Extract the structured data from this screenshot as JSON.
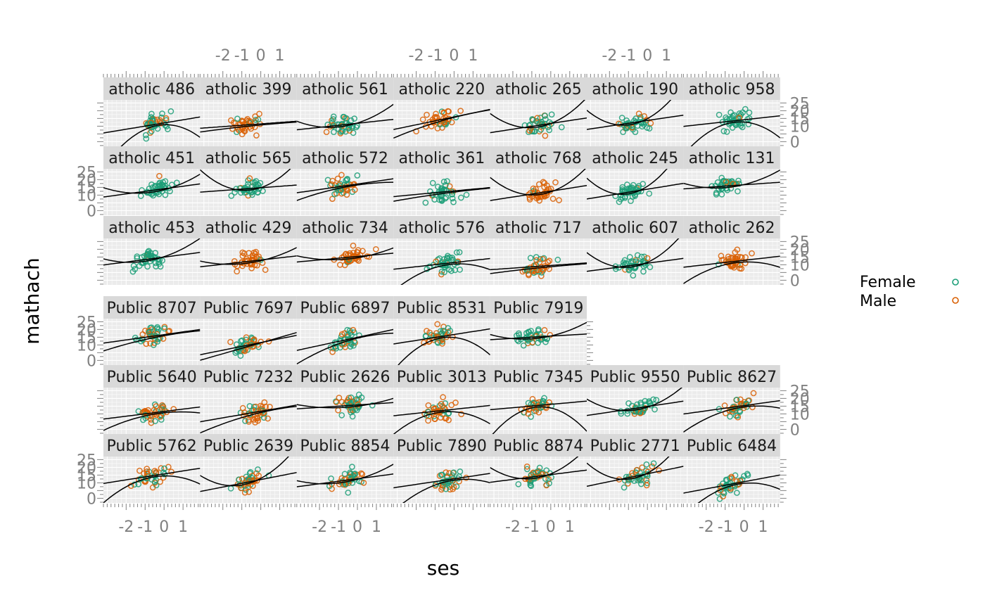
{
  "chart_data": {
    "type": "scatter",
    "title": "",
    "xlabel": "ses",
    "ylabel": "mathach",
    "xlim": [
      -3.2,
      1.9
    ],
    "ylim": [
      -3,
      27
    ],
    "x_ticks": [
      "-2",
      "-1",
      "0",
      "1"
    ],
    "y_ticks": [
      "0",
      "5",
      "10",
      "15",
      "20",
      "25"
    ],
    "y_tick_labels_shown": [
      "0",
      "10",
      "15",
      "20",
      "25"
    ],
    "grid": true,
    "legend": {
      "placement": "right",
      "entries": [
        {
          "name": "Female",
          "color": "#1b9e77"
        },
        {
          "name": "Male",
          "color": "#d95f02"
        }
      ]
    },
    "series": [
      {
        "name": "Female"
      },
      {
        "name": "Male"
      }
    ],
    "panel_rows": [
      [
        "atholic 486",
        "atholic 399",
        "atholic 561",
        "atholic 220",
        "atholic 265",
        "atholic 190",
        "atholic 958"
      ],
      [
        "atholic 451",
        "atholic 565",
        "atholic 572",
        "atholic 361",
        "atholic 768",
        "atholic 245",
        "atholic 131"
      ],
      [
        "atholic 453",
        "atholic 429",
        "atholic 734",
        "atholic 576",
        "atholic 717",
        "atholic 607",
        "atholic 262"
      ],
      [
        "Public 8707",
        "Public 7697",
        "Public 6897",
        "Public 8531",
        "Public 7919"
      ],
      [
        "Public 5640",
        "Public 7232",
        "Public 2626",
        "Public 3013",
        "Public 7345",
        "Public 9550",
        "Public 8627"
      ],
      [
        "Public 5762",
        "Public 2639",
        "Public 8854",
        "Public 7890",
        "Public 8874",
        "Public 2771",
        "Public 6484"
      ]
    ],
    "panel_mix": [
      [
        0.3,
        0.85,
        0.3,
        0.85,
        0.15,
        0.4,
        0.1
      ],
      [
        0.1,
        0.1,
        0.5,
        0.2,
        0.95,
        0.05,
        0.1
      ],
      [
        0.1,
        0.9,
        0.95,
        0.15,
        0.65,
        0.1,
        0.95
      ],
      [
        0.5,
        0.5,
        0.3,
        0.6,
        0.2
      ],
      [
        0.6,
        0.6,
        0.3,
        0.7,
        0.5,
        0.15,
        0.5
      ],
      [
        0.45,
        0.5,
        0.35,
        0.5,
        0.4,
        0.4,
        0.4
      ]
    ],
    "points_per_panel": 40,
    "fit_lines_per_panel": 2
  }
}
